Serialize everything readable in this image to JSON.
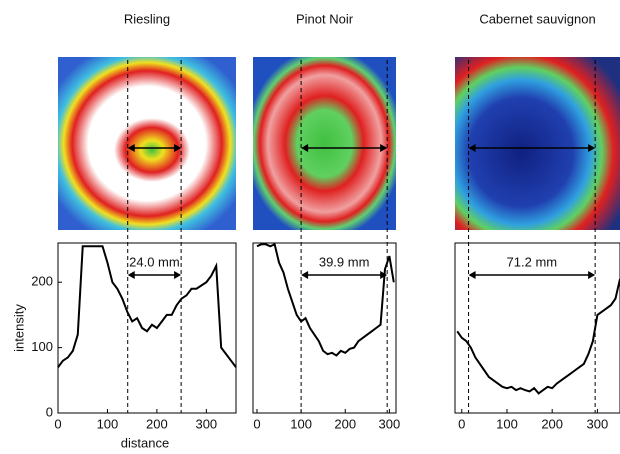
{
  "chart_data": [
    {
      "type": "line",
      "title": "Riesling",
      "xlabel": "distance",
      "ylabel": "intensity",
      "x": [
        0,
        10,
        20,
        30,
        40,
        50,
        60,
        70,
        80,
        90,
        100,
        110,
        120,
        130,
        140,
        150,
        160,
        170,
        180,
        190,
        200,
        210,
        220,
        230,
        240,
        250,
        260,
        270,
        280,
        290,
        300,
        310,
        320,
        330,
        340,
        350,
        360
      ],
      "series": [
        {
          "name": "Riesling",
          "color": "#000000",
          "values": [
            70,
            80,
            85,
            95,
            120,
            255,
            255,
            255,
            255,
            255,
            230,
            200,
            190,
            175,
            155,
            140,
            145,
            130,
            125,
            135,
            130,
            140,
            150,
            150,
            165,
            175,
            180,
            190,
            190,
            195,
            200,
            210,
            225,
            100,
            90,
            80,
            70
          ]
        }
      ],
      "xlim": [
        0,
        360
      ],
      "ylim": [
        0,
        260
      ],
      "xticks": [
        0,
        100,
        200,
        300
      ],
      "yticks": [
        0,
        100,
        200
      ],
      "annotation": "24.0 mm",
      "markers": [
        141,
        249
      ]
    },
    {
      "type": "line",
      "title": "Pinot Noir",
      "x": [
        0,
        10,
        20,
        30,
        40,
        50,
        60,
        70,
        80,
        90,
        100,
        110,
        120,
        130,
        140,
        150,
        160,
        170,
        180,
        190,
        200,
        210,
        220,
        230,
        240,
        250,
        260,
        270,
        280,
        290,
        300,
        310
      ],
      "series": [
        {
          "name": "Pinot Noir",
          "color": "#000000",
          "values": [
            255,
            258,
            258,
            255,
            258,
            230,
            215,
            190,
            170,
            150,
            140,
            145,
            130,
            120,
            110,
            95,
            90,
            92,
            88,
            95,
            92,
            98,
            100,
            110,
            115,
            120,
            125,
            130,
            135,
            220,
            240,
            200
          ]
        }
      ],
      "xlim": [
        -9,
        315
      ],
      "ylim": [
        0,
        260
      ],
      "xticks": [
        0,
        100,
        200,
        300
      ],
      "annotation": "39.9 mm",
      "markers": [
        100,
        295
      ]
    },
    {
      "type": "line",
      "title": "Cabernet sauvignon",
      "x": [
        -10,
        0,
        10,
        20,
        30,
        40,
        50,
        60,
        70,
        80,
        90,
        100,
        110,
        120,
        130,
        140,
        150,
        160,
        170,
        180,
        190,
        200,
        210,
        220,
        230,
        240,
        250,
        260,
        270,
        280,
        290,
        300,
        310,
        320,
        330,
        340,
        350
      ],
      "series": [
        {
          "name": "Cabernet sauvignon",
          "color": "#000000",
          "values": [
            125,
            115,
            110,
            100,
            85,
            75,
            65,
            55,
            50,
            45,
            40,
            38,
            40,
            35,
            38,
            35,
            33,
            38,
            30,
            35,
            40,
            38,
            45,
            50,
            55,
            60,
            65,
            70,
            75,
            90,
            110,
            150,
            155,
            160,
            165,
            175,
            205
          ]
        }
      ],
      "xlim": [
        -15,
        350
      ],
      "ylim": [
        0,
        260
      ],
      "xticks": [
        0,
        100,
        200,
        300
      ],
      "annotation": "71.2 mm",
      "markers": [
        15,
        295
      ]
    }
  ]
}
